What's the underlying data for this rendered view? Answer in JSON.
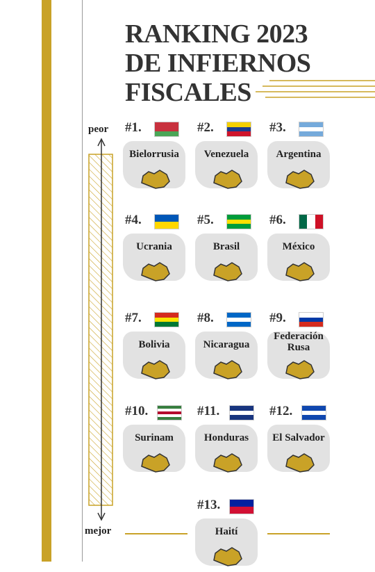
{
  "title": {
    "lines": [
      "RANKING 2023",
      "DE INFIERNOS",
      "FISCALES"
    ]
  },
  "scale": {
    "worst": "peor",
    "best": "mejor"
  },
  "ranking": [
    {
      "rank": "#1.",
      "country": "Bielorrusia"
    },
    {
      "rank": "#2.",
      "country": "Venezuela"
    },
    {
      "rank": "#3.",
      "country": "Argentina"
    },
    {
      "rank": "#4.",
      "country": "Ucrania"
    },
    {
      "rank": "#5.",
      "country": "Brasil"
    },
    {
      "rank": "#6.",
      "country": "México"
    },
    {
      "rank": "#7.",
      "country": "Bolivia"
    },
    {
      "rank": "#8.",
      "country": "Nicaragua"
    },
    {
      "rank": "#9.",
      "country": "Federación Rusa"
    },
    {
      "rank": "#10.",
      "country": "Surinam"
    },
    {
      "rank": "#11.",
      "country": "Honduras"
    },
    {
      "rank": "#12.",
      "country": "El Salvador"
    },
    {
      "rank": "#13.",
      "country": "Haití"
    }
  ]
}
